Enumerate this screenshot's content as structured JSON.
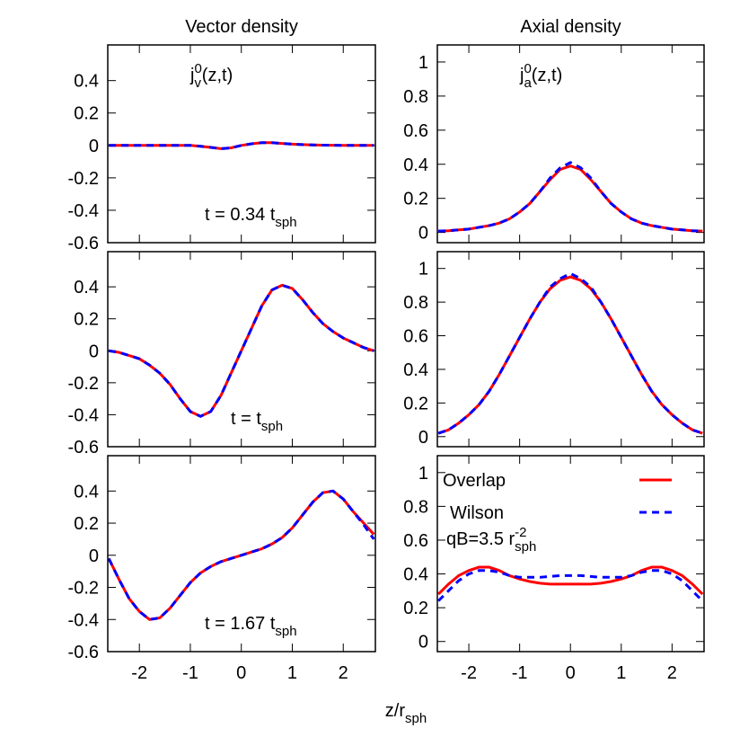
{
  "chart_data": [
    {
      "type": "line",
      "title": "Vector density",
      "annotation": {
        "text": "j",
        "sup": "0",
        "sub": "v",
        "after": "(z,t)"
      },
      "time_label": {
        "text": "t = 0.34 t",
        "sub": "sph"
      },
      "x": [
        -2.6,
        -2.4,
        -2.2,
        -2.0,
        -1.8,
        -1.6,
        -1.4,
        -1.2,
        -1.0,
        -0.8,
        -0.6,
        -0.4,
        -0.2,
        0,
        0.2,
        0.4,
        0.6,
        0.8,
        1.0,
        1.2,
        1.4,
        1.6,
        1.8,
        2.0,
        2.2,
        2.4,
        2.6
      ],
      "series": [
        {
          "name": "Overlap",
          "color": "#ff0000",
          "values": [
            0,
            0,
            0,
            0,
            0,
            0,
            0,
            0,
            0,
            -0.005,
            -0.012,
            -0.02,
            -0.015,
            0,
            0.01,
            0.017,
            0.017,
            0.012,
            0.008,
            0.005,
            0.003,
            0.002,
            0.001,
            0,
            0,
            0,
            0
          ]
        },
        {
          "name": "Wilson",
          "color": "#0000ff",
          "values": [
            0,
            0,
            0,
            0,
            0,
            0,
            0,
            0,
            0,
            -0.005,
            -0.012,
            -0.02,
            -0.015,
            0,
            0.01,
            0.017,
            0.017,
            0.012,
            0.008,
            0.005,
            0.003,
            0.002,
            0.001,
            0,
            0,
            0,
            0
          ]
        }
      ],
      "xlim": [
        -2.62,
        2.63
      ],
      "xticks": [
        -2,
        -1,
        0,
        1,
        2
      ],
      "ylim": [
        -0.6,
        0.62
      ],
      "yticks": [
        -0.6,
        -0.4,
        -0.2,
        0,
        0.2,
        0.4
      ]
    },
    {
      "type": "line",
      "title": "Axial density",
      "annotation": {
        "text": "j",
        "sup": "0",
        "sub": "a",
        "after": "(z,t)"
      },
      "x": [
        -2.6,
        -2.4,
        -2.2,
        -2.0,
        -1.8,
        -1.6,
        -1.4,
        -1.2,
        -1.0,
        -0.8,
        -0.6,
        -0.4,
        -0.2,
        0,
        0.2,
        0.4,
        0.6,
        0.8,
        1.0,
        1.2,
        1.4,
        1.6,
        1.8,
        2.0,
        2.2,
        2.4,
        2.6
      ],
      "series": [
        {
          "name": "Overlap",
          "color": "#ff0000",
          "values": [
            0.008,
            0.01,
            0.015,
            0.02,
            0.03,
            0.04,
            0.055,
            0.08,
            0.12,
            0.17,
            0.24,
            0.31,
            0.37,
            0.39,
            0.37,
            0.31,
            0.24,
            0.17,
            0.12,
            0.08,
            0.055,
            0.04,
            0.03,
            0.02,
            0.015,
            0.01,
            0.008
          ]
        },
        {
          "name": "Wilson",
          "color": "#0000ff",
          "values": [
            0.008,
            0.01,
            0.015,
            0.02,
            0.03,
            0.04,
            0.055,
            0.08,
            0.12,
            0.17,
            0.24,
            0.32,
            0.38,
            0.41,
            0.38,
            0.32,
            0.24,
            0.17,
            0.12,
            0.08,
            0.055,
            0.04,
            0.03,
            0.02,
            0.015,
            0.01,
            0.008
          ]
        }
      ],
      "xlim": [
        -2.62,
        2.63
      ],
      "xticks": [
        -2,
        -1,
        0,
        1,
        2
      ],
      "ylim": [
        -0.06,
        1.1
      ],
      "yticks": [
        0,
        0.2,
        0.4,
        0.6,
        0.8,
        1
      ]
    },
    {
      "type": "line",
      "time_label": {
        "text": "t = t",
        "sub": "sph"
      },
      "x": [
        -2.6,
        -2.4,
        -2.2,
        -2.0,
        -1.8,
        -1.6,
        -1.4,
        -1.2,
        -1.0,
        -0.8,
        -0.6,
        -0.4,
        -0.2,
        0,
        0.2,
        0.4,
        0.6,
        0.8,
        1.0,
        1.2,
        1.4,
        1.6,
        1.8,
        2.0,
        2.2,
        2.4,
        2.6
      ],
      "series": [
        {
          "name": "Overlap",
          "color": "#ff0000",
          "values": [
            0,
            -0.01,
            -0.03,
            -0.05,
            -0.09,
            -0.14,
            -0.21,
            -0.3,
            -0.38,
            -0.41,
            -0.38,
            -0.28,
            -0.14,
            0,
            0.14,
            0.28,
            0.38,
            0.41,
            0.39,
            0.32,
            0.24,
            0.17,
            0.12,
            0.08,
            0.05,
            0.02,
            0
          ]
        },
        {
          "name": "Wilson",
          "color": "#0000ff",
          "values": [
            0,
            -0.01,
            -0.03,
            -0.05,
            -0.09,
            -0.14,
            -0.21,
            -0.3,
            -0.38,
            -0.41,
            -0.38,
            -0.28,
            -0.14,
            0,
            0.14,
            0.28,
            0.38,
            0.41,
            0.39,
            0.32,
            0.24,
            0.17,
            0.12,
            0.08,
            0.05,
            0.02,
            0
          ]
        }
      ],
      "xlim": [
        -2.62,
        2.63
      ],
      "xticks": [
        -2,
        -1,
        0,
        1,
        2
      ],
      "ylim": [
        -0.6,
        0.62
      ],
      "yticks": [
        -0.6,
        -0.4,
        -0.2,
        0,
        0.2,
        0.4
      ]
    },
    {
      "type": "line",
      "x": [
        -2.6,
        -2.4,
        -2.2,
        -2.0,
        -1.8,
        -1.6,
        -1.4,
        -1.2,
        -1.0,
        -0.8,
        -0.6,
        -0.4,
        -0.2,
        0,
        0.2,
        0.4,
        0.6,
        0.8,
        1.0,
        1.2,
        1.4,
        1.6,
        1.8,
        2.0,
        2.2,
        2.4,
        2.6
      ],
      "series": [
        {
          "name": "Overlap",
          "color": "#ff0000",
          "values": [
            0.02,
            0.04,
            0.08,
            0.13,
            0.19,
            0.27,
            0.37,
            0.48,
            0.59,
            0.7,
            0.8,
            0.88,
            0.93,
            0.95,
            0.93,
            0.88,
            0.8,
            0.7,
            0.59,
            0.48,
            0.37,
            0.27,
            0.19,
            0.13,
            0.08,
            0.04,
            0.02
          ]
        },
        {
          "name": "Wilson",
          "color": "#0000ff",
          "values": [
            0.02,
            0.04,
            0.08,
            0.13,
            0.19,
            0.27,
            0.37,
            0.48,
            0.59,
            0.7,
            0.8,
            0.89,
            0.94,
            0.97,
            0.94,
            0.89,
            0.8,
            0.7,
            0.59,
            0.48,
            0.37,
            0.27,
            0.19,
            0.13,
            0.08,
            0.04,
            0.02
          ]
        }
      ],
      "xlim": [
        -2.62,
        2.63
      ],
      "xticks": [
        -2,
        -1,
        0,
        1,
        2
      ],
      "ylim": [
        -0.06,
        1.1
      ],
      "yticks": [
        0,
        0.2,
        0.4,
        0.6,
        0.8,
        1
      ]
    },
    {
      "type": "line",
      "time_label": {
        "text": "t = 1.67 t",
        "sub": "sph"
      },
      "xlabel": {
        "text": "z/r",
        "sub": "sph"
      },
      "x": [
        -2.6,
        -2.4,
        -2.2,
        -2.0,
        -1.8,
        -1.6,
        -1.4,
        -1.2,
        -1.0,
        -0.8,
        -0.6,
        -0.4,
        -0.2,
        0,
        0.2,
        0.4,
        0.6,
        0.8,
        1.0,
        1.2,
        1.4,
        1.6,
        1.8,
        2.0,
        2.2,
        2.4,
        2.6
      ],
      "series": [
        {
          "name": "Overlap",
          "color": "#ff0000",
          "values": [
            -0.02,
            -0.15,
            -0.27,
            -0.35,
            -0.4,
            -0.39,
            -0.33,
            -0.25,
            -0.17,
            -0.11,
            -0.07,
            -0.04,
            -0.02,
            0,
            0.02,
            0.04,
            0.07,
            0.11,
            0.17,
            0.25,
            0.33,
            0.39,
            0.4,
            0.35,
            0.27,
            0.2,
            0.13
          ]
        },
        {
          "name": "Wilson",
          "color": "#0000ff",
          "values": [
            -0.02,
            -0.15,
            -0.27,
            -0.35,
            -0.4,
            -0.39,
            -0.33,
            -0.25,
            -0.17,
            -0.11,
            -0.07,
            -0.04,
            -0.02,
            0,
            0.02,
            0.04,
            0.07,
            0.11,
            0.17,
            0.25,
            0.33,
            0.39,
            0.4,
            0.35,
            0.27,
            0.19,
            0.1
          ]
        }
      ],
      "xlim": [
        -2.62,
        2.63
      ],
      "xticks": [
        -2,
        -1,
        0,
        1,
        2
      ],
      "ylim": [
        -0.6,
        0.62
      ],
      "yticks": [
        -0.6,
        -0.4,
        -0.2,
        0,
        0.2,
        0.4
      ]
    },
    {
      "type": "line",
      "legend": true,
      "legend_note": {
        "text": "qB=3.5 r",
        "sup": "-2",
        "sub": "sph"
      },
      "x": [
        -2.6,
        -2.4,
        -2.2,
        -2.0,
        -1.8,
        -1.6,
        -1.4,
        -1.2,
        -1.0,
        -0.8,
        -0.6,
        -0.4,
        -0.2,
        0,
        0.2,
        0.4,
        0.6,
        0.8,
        1.0,
        1.2,
        1.4,
        1.6,
        1.8,
        2.0,
        2.2,
        2.4,
        2.6
      ],
      "series": [
        {
          "name": "Overlap",
          "color": "#ff0000",
          "values": [
            0.28,
            0.34,
            0.39,
            0.42,
            0.44,
            0.44,
            0.42,
            0.39,
            0.37,
            0.355,
            0.345,
            0.34,
            0.34,
            0.34,
            0.34,
            0.34,
            0.345,
            0.355,
            0.37,
            0.39,
            0.42,
            0.44,
            0.44,
            0.42,
            0.39,
            0.34,
            0.28
          ]
        },
        {
          "name": "Wilson",
          "color": "#0000ff",
          "values": [
            0.24,
            0.3,
            0.36,
            0.4,
            0.42,
            0.42,
            0.41,
            0.39,
            0.38,
            0.38,
            0.38,
            0.385,
            0.39,
            0.39,
            0.39,
            0.385,
            0.38,
            0.38,
            0.38,
            0.39,
            0.41,
            0.42,
            0.42,
            0.4,
            0.36,
            0.3,
            0.24
          ]
        }
      ],
      "xlim": [
        -2.62,
        2.63
      ],
      "xticks": [
        -2,
        -1,
        0,
        1,
        2
      ],
      "ylim": [
        -0.06,
        1.1
      ],
      "yticks": [
        0,
        0.2,
        0.4,
        0.6,
        0.8,
        1
      ]
    }
  ]
}
